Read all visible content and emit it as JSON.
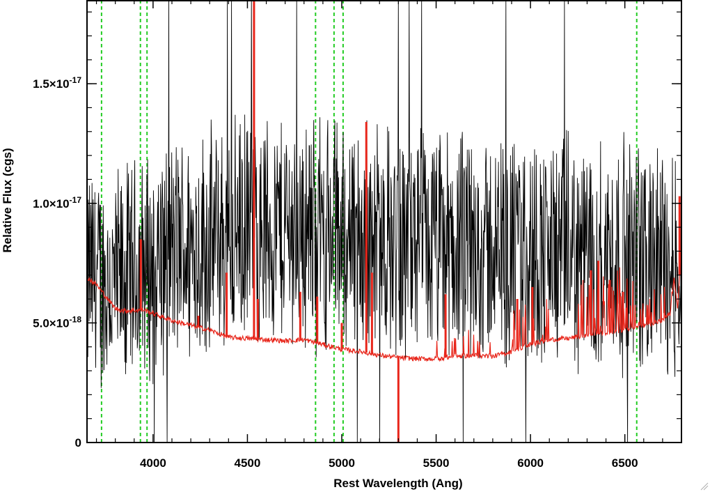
{
  "chart_data": {
    "type": "line",
    "title": "",
    "xlabel": "Rest Wavelength (Ang)",
    "ylabel": "Relative Flux (cgs)",
    "xlim": [
      3650,
      6800
    ],
    "ylim": [
      0,
      1.85e-17
    ],
    "x_ticks": [
      {
        "value": 4000,
        "label": "4000"
      },
      {
        "value": 4500,
        "label": "4500"
      },
      {
        "value": 5000,
        "label": "5000"
      },
      {
        "value": 5500,
        "label": "5500"
      },
      {
        "value": 6000,
        "label": "6000"
      },
      {
        "value": 6500,
        "label": "6500"
      }
    ],
    "y_ticks": [
      {
        "value": 0,
        "mantissa": "0",
        "exponent": ""
      },
      {
        "value": 5e-18,
        "mantissa": "5.0×10",
        "exponent": "-18"
      },
      {
        "value": 1e-17,
        "mantissa": "1.0×10",
        "exponent": "-17"
      },
      {
        "value": 1.5e-17,
        "mantissa": "1.5×10",
        "exponent": "-17"
      }
    ],
    "grid": false,
    "legend": "none",
    "series": [
      {
        "color": "#000000",
        "style": "noisy spectrum",
        "points": [
          [
            3650,
            7e-18
          ],
          [
            3700,
            6.8e-18
          ],
          [
            3750,
            6.6e-18
          ],
          [
            3800,
            6.5e-18
          ],
          [
            3850,
            6.7e-18
          ],
          [
            3900,
            7e-18
          ],
          [
            3950,
            7.2e-18
          ],
          [
            4000,
            7.5e-18
          ],
          [
            4050,
            7.8e-18
          ],
          [
            4100,
            8e-18
          ],
          [
            4200,
            8.2e-18
          ],
          [
            4300,
            8.4e-18
          ],
          [
            4400,
            8.6e-18
          ],
          [
            4500,
            8.8e-18
          ],
          [
            4600,
            8.9e-18
          ],
          [
            4700,
            9e-18
          ],
          [
            4800,
            8.9e-18
          ],
          [
            4900,
            8.8e-18
          ],
          [
            5000,
            8.7e-18
          ],
          [
            5100,
            8.6e-18
          ],
          [
            5200,
            8.5e-18
          ],
          [
            5300,
            8.4e-18
          ],
          [
            5400,
            8.3e-18
          ],
          [
            5500,
            8.2e-18
          ],
          [
            5600,
            8.1e-18
          ],
          [
            5700,
            8.1e-18
          ],
          [
            5800,
            8e-18
          ],
          [
            5900,
            8e-18
          ],
          [
            6000,
            8e-18
          ],
          [
            6100,
            8e-18
          ],
          [
            6200,
            7.9e-18
          ],
          [
            6300,
            7.8e-18
          ],
          [
            6400,
            7.8e-18
          ],
          [
            6500,
            7.8e-18
          ],
          [
            6600,
            7.7e-18
          ],
          [
            6700,
            7.6e-18
          ],
          [
            6800,
            7.4e-18
          ]
        ],
        "noise_amplitude": 5.5e-18
      },
      {
        "color": "#e8261b",
        "style": "error spectrum",
        "points": [
          [
            3650,
            6.9e-18
          ],
          [
            3700,
            6.6e-18
          ],
          [
            3760,
            6e-18
          ],
          [
            3800,
            5.6e-18
          ],
          [
            3850,
            5.5e-18
          ],
          [
            3950,
            5.55e-18
          ],
          [
            4000,
            5.4e-18
          ],
          [
            4100,
            5.1e-18
          ],
          [
            4200,
            4.9e-18
          ],
          [
            4300,
            4.7e-18
          ],
          [
            4400,
            4.4e-18
          ],
          [
            4500,
            4.35e-18
          ],
          [
            4600,
            4.3e-18
          ],
          [
            4700,
            4.25e-18
          ],
          [
            4800,
            4.3e-18
          ],
          [
            4900,
            4.1e-18
          ],
          [
            5000,
            3.9e-18
          ],
          [
            5100,
            3.8e-18
          ],
          [
            5200,
            3.65e-18
          ],
          [
            5300,
            3.55e-18
          ],
          [
            5400,
            3.5e-18
          ],
          [
            5500,
            3.5e-18
          ],
          [
            5600,
            3.6e-18
          ],
          [
            5700,
            3.65e-18
          ],
          [
            5800,
            3.6e-18
          ],
          [
            5900,
            3.8e-18
          ],
          [
            6000,
            4.1e-18
          ],
          [
            6100,
            4.3e-18
          ],
          [
            6200,
            4.35e-18
          ],
          [
            6300,
            4.5e-18
          ],
          [
            6400,
            4.6e-18
          ],
          [
            6500,
            4.7e-18
          ],
          [
            6600,
            4.9e-18
          ],
          [
            6700,
            5.1e-18
          ],
          [
            6740,
            5.4e-18
          ],
          [
            6760,
            6.9e-18
          ],
          [
            6780,
            5.5e-18
          ],
          [
            6800,
            8.5e-18
          ]
        ],
        "spikes": [
          [
            3935,
            8.5e-18
          ],
          [
            4240,
            5.3e-18
          ],
          [
            4390,
            7.1e-18
          ],
          [
            4535,
            1.85e-17
          ],
          [
            4555,
            6e-18
          ],
          [
            4780,
            6.3e-18
          ],
          [
            4870,
            6.1e-18
          ],
          [
            5000,
            5e-18
          ],
          [
            5130,
            1.34e-17
          ],
          [
            5160,
            7.1e-18
          ],
          [
            5300,
            0
          ],
          [
            5550,
            6.2e-18
          ],
          [
            5930,
            6e-18
          ],
          [
            6010,
            6.5e-18
          ],
          [
            6320,
            7.2e-18
          ],
          [
            6360,
            7.6e-18
          ],
          [
            6420,
            6.8e-18
          ],
          [
            6490,
            6.3e-18
          ],
          [
            6790,
            1.03e-17
          ]
        ]
      }
    ],
    "reference_lines": {
      "color": "#22cc22",
      "style": "dashed",
      "x": [
        3727,
        3933,
        3968,
        4861,
        4959,
        5007,
        6563
      ]
    }
  }
}
